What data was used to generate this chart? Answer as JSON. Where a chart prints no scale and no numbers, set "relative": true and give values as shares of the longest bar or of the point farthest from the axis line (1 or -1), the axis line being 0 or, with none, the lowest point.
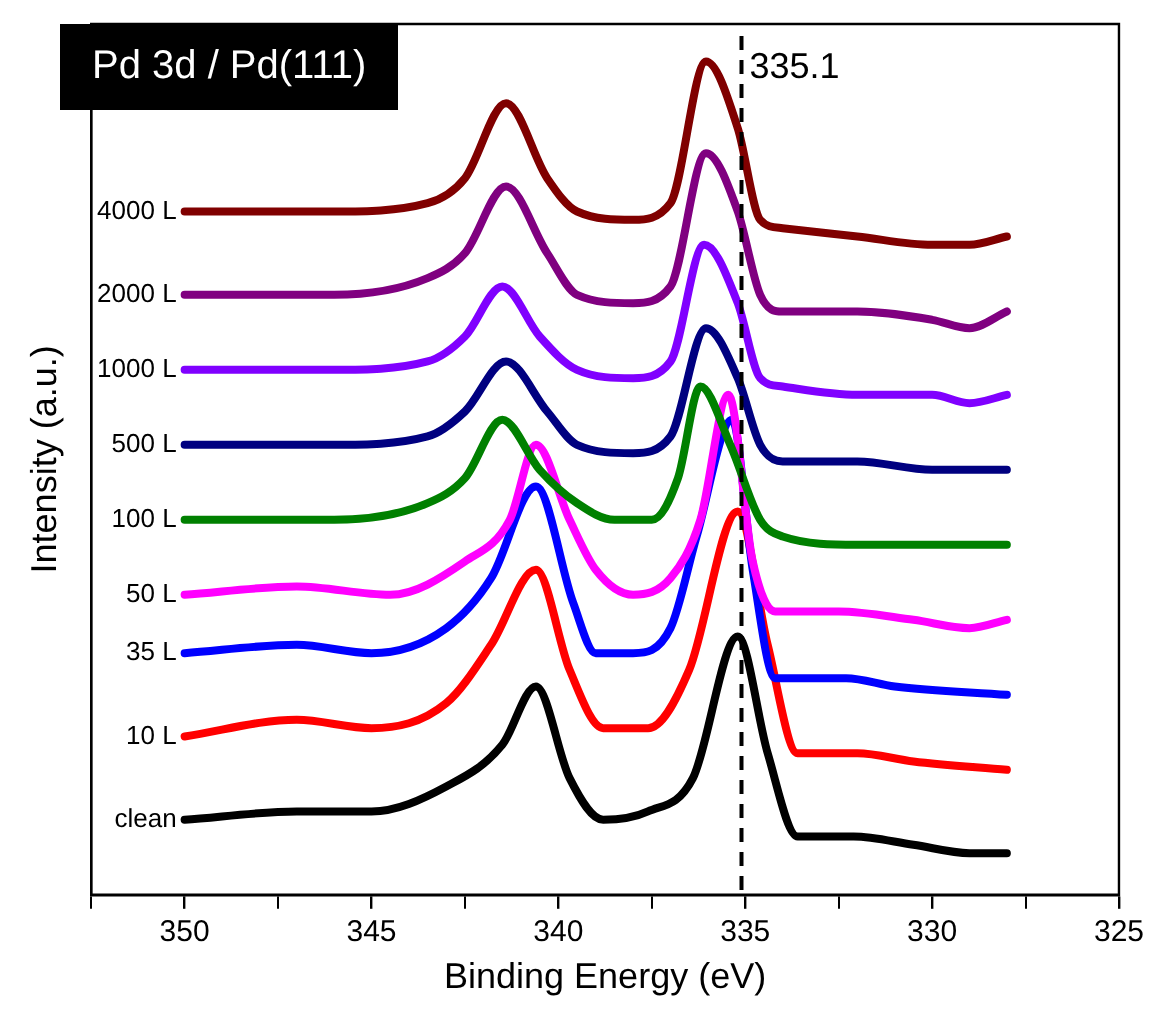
{
  "chart_data": {
    "type": "line",
    "title": "Pd 3d / Pd(111)",
    "xlabel": "Binding Energy (eV)",
    "ylabel": "Intensity (a.u.)",
    "relative": true,
    "legend": false,
    "grid": false,
    "xlim": [
      352.5,
      325
    ],
    "xticks": [
      {
        "value": 352.5,
        "label": null
      },
      350,
      {
        "value": 347.5,
        "label": null
      },
      345,
      {
        "value": 342.5,
        "label": null
      },
      340,
      {
        "value": 337.5,
        "label": null
      },
      335,
      {
        "value": 332.5,
        "label": null
      },
      330,
      {
        "value": 327.5,
        "label": null
      },
      325
    ],
    "ref_lines": [
      {
        "axis": "x",
        "value": 335.1,
        "label": "335.1",
        "line_style": "dashed",
        "color": "#000000"
      }
    ],
    "series": [
      {
        "name": "4000 L",
        "color": "#800000",
        "x": [
          350,
          346,
          343.5,
          342.5,
          341.4,
          340.3,
          339.5,
          338,
          337,
          336.05,
          335.2,
          334.6,
          334,
          332,
          330,
          329,
          328
        ],
        "values": [
          0.82,
          0.82,
          0.83,
          0.86,
          0.95,
          0.86,
          0.82,
          0.81,
          0.83,
          1.0,
          0.92,
          0.81,
          0.8,
          0.79,
          0.78,
          0.78,
          0.79
        ]
      },
      {
        "name": "2000 L",
        "color": "#800080",
        "x": [
          350,
          346,
          343.5,
          342.5,
          341.4,
          340.3,
          339.5,
          338,
          337,
          336.05,
          335.2,
          334.6,
          334,
          332,
          330,
          329,
          328
        ],
        "values": [
          0.72,
          0.72,
          0.74,
          0.77,
          0.85,
          0.77,
          0.72,
          0.71,
          0.73,
          0.89,
          0.82,
          0.72,
          0.7,
          0.7,
          0.69,
          0.68,
          0.7
        ]
      },
      {
        "name": "1000 L",
        "color": "#8000ff",
        "x": [
          350,
          346,
          343.5,
          342.5,
          341.5,
          340.5,
          339.5,
          338,
          337,
          336.1,
          335.2,
          334.6,
          334,
          332,
          330,
          329,
          328
        ],
        "values": [
          0.63,
          0.63,
          0.64,
          0.67,
          0.73,
          0.67,
          0.63,
          0.62,
          0.64,
          0.78,
          0.71,
          0.62,
          0.61,
          0.6,
          0.6,
          0.59,
          0.6
        ]
      },
      {
        "name": "500 L",
        "color": "#000080",
        "x": [
          350,
          346,
          343.5,
          342.5,
          341.4,
          340.3,
          339.5,
          338,
          337,
          336.05,
          335.2,
          334.6,
          334,
          332,
          330,
          329,
          328
        ],
        "values": [
          0.54,
          0.54,
          0.55,
          0.58,
          0.64,
          0.58,
          0.54,
          0.53,
          0.55,
          0.68,
          0.62,
          0.54,
          0.52,
          0.52,
          0.51,
          0.51,
          0.51
        ]
      },
      {
        "name": "100 L",
        "color": "#008000",
        "x": [
          350,
          346,
          343.5,
          342.5,
          341.5,
          340.5,
          339.5,
          338.5,
          337.5,
          336.8,
          336.2,
          335.4,
          334.6,
          334,
          332,
          330,
          329,
          328
        ],
        "values": [
          0.45,
          0.45,
          0.47,
          0.5,
          0.57,
          0.51,
          0.47,
          0.45,
          0.45,
          0.5,
          0.61,
          0.54,
          0.45,
          0.43,
          0.42,
          0.42,
          0.42,
          0.42
        ]
      },
      {
        "name": "50 L",
        "color": "#ff00ff",
        "x": [
          350,
          347,
          344.5,
          342.5,
          341.3,
          340.6,
          339.7,
          339,
          338,
          337,
          336.2,
          335.45,
          334.8,
          334.2,
          332.5,
          330.5,
          329,
          328
        ],
        "values": [
          0.36,
          0.37,
          0.36,
          0.4,
          0.45,
          0.54,
          0.45,
          0.39,
          0.36,
          0.38,
          0.45,
          0.6,
          0.4,
          0.34,
          0.34,
          0.33,
          0.32,
          0.33
        ]
      },
      {
        "name": "35 L",
        "color": "#0000ff",
        "x": [
          350,
          347,
          345,
          343,
          341.8,
          340.6,
          339.6,
          339,
          338,
          337,
          336.3,
          335.35,
          334.8,
          334.2,
          332.3,
          331,
          328
        ],
        "values": [
          0.29,
          0.3,
          0.29,
          0.32,
          0.38,
          0.49,
          0.35,
          0.29,
          0.29,
          0.32,
          0.43,
          0.57,
          0.39,
          0.26,
          0.26,
          0.25,
          0.24
        ]
      },
      {
        "name": "10 L",
        "color": "#ff0000",
        "x": [
          350,
          347,
          345,
          343,
          341.8,
          340.6,
          339.7,
          338.8,
          337.6,
          336.5,
          335.2,
          334.4,
          333.6,
          332,
          330.5,
          328
        ],
        "values": [
          0.19,
          0.21,
          0.2,
          0.23,
          0.3,
          0.39,
          0.27,
          0.2,
          0.2,
          0.27,
          0.46,
          0.3,
          0.17,
          0.17,
          0.16,
          0.15
        ]
      },
      {
        "name": "clean",
        "color": "#000000",
        "x": [
          350,
          347,
          345,
          343,
          341.5,
          340.6,
          339.7,
          338.8,
          337.6,
          336.4,
          335.2,
          334.4,
          333.6,
          332.1,
          330.5,
          329,
          328
        ],
        "values": [
          0.09,
          0.1,
          0.1,
          0.13,
          0.18,
          0.25,
          0.14,
          0.09,
          0.1,
          0.14,
          0.31,
          0.17,
          0.07,
          0.07,
          0.06,
          0.05,
          0.05
        ]
      }
    ]
  }
}
